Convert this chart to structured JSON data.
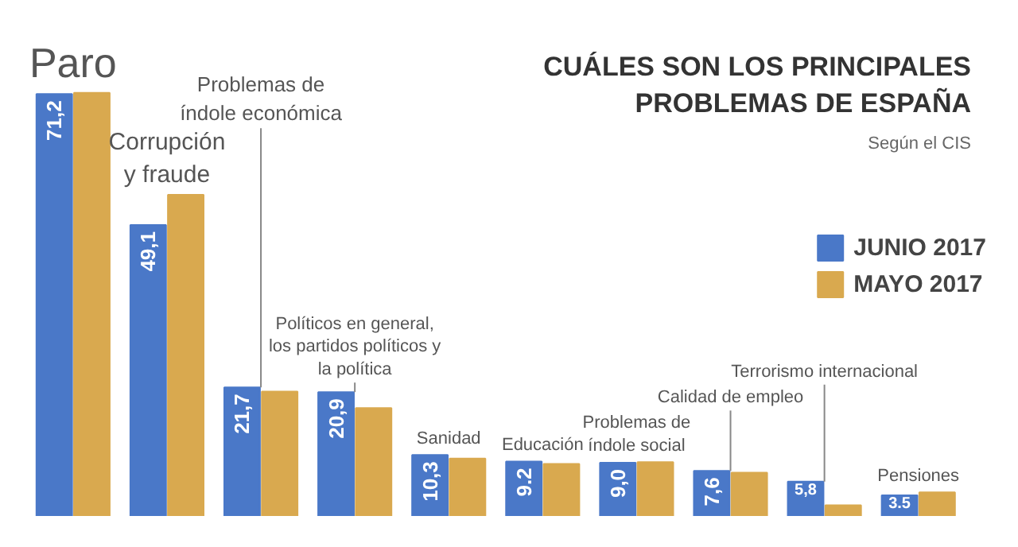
{
  "chart_data": {
    "type": "bar",
    "title": "CUÁLES SON LOS PRINCIPALES\nPROBLEMAS DE ESPAÑA",
    "subtitle": "Según el CIS",
    "categories": [
      "Paro",
      "Corrupción\ny fraude",
      "Problemas de\níndole económica",
      "Políticos en general,\nlos partidos políticos y\nla política",
      "Sanidad",
      "Educación",
      "Problemas de\níndole social",
      "Calidad de empleo",
      "Terrorismo internacional",
      "Pensiones"
    ],
    "series": [
      {
        "name": "JUNIO 2017",
        "color": "#4a78c8",
        "values": [
          71.2,
          49.1,
          21.7,
          20.9,
          10.3,
          9.2,
          9.0,
          7.6,
          5.8,
          3.5
        ],
        "value_labels": [
          "71,2",
          "49,1",
          "21,7",
          "20,9",
          "10,3",
          "9.2",
          "9,0",
          "7,6",
          "5,8",
          "3.5"
        ]
      },
      {
        "name": "MAYO 2017",
        "color": "#d9a94f",
        "values": [
          71.4,
          54.2,
          21.0,
          18.2,
          9.7,
          8.8,
          9.1,
          7.3,
          1.8,
          4.0
        ]
      }
    ],
    "grid": false,
    "legend": "right"
  }
}
